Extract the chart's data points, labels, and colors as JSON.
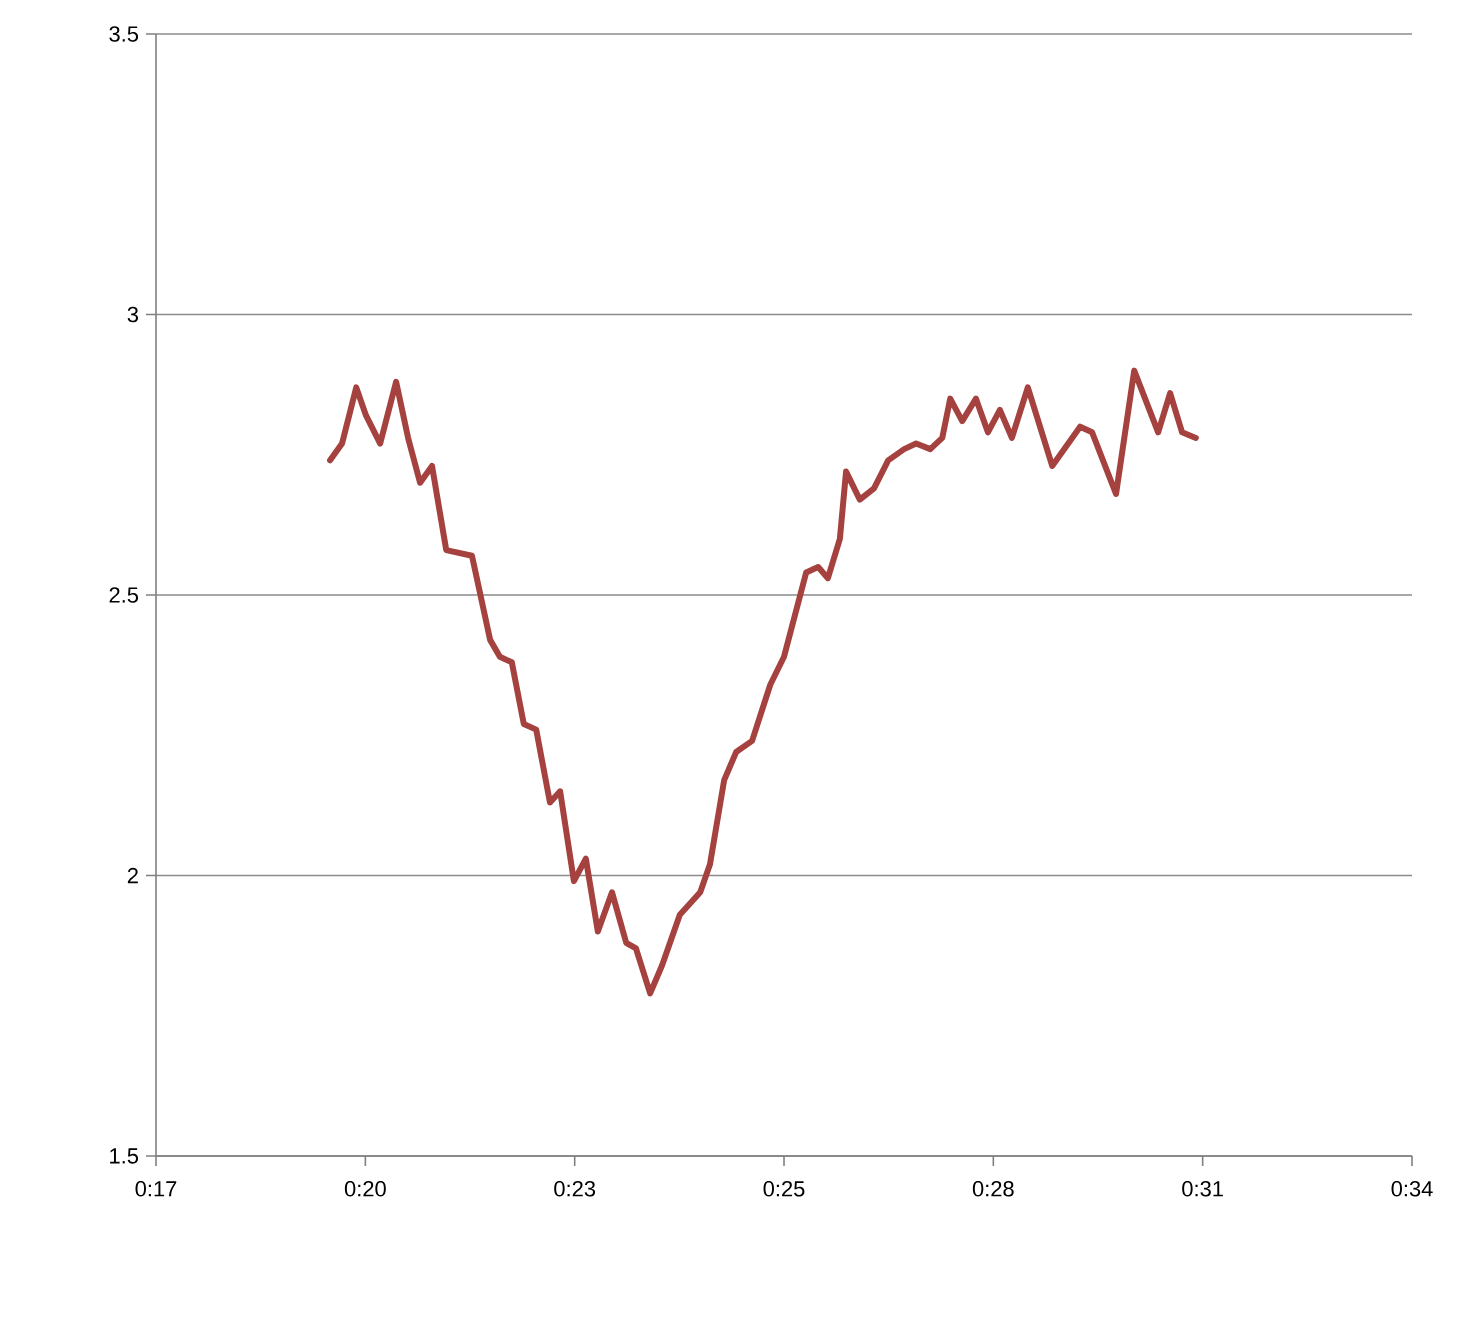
{
  "chart_data": {
    "type": "line",
    "x": [
      0.3226,
      0.3253,
      0.3285,
      0.3307,
      0.3339,
      0.3375,
      0.3402,
      0.3429,
      0.3456,
      0.3488,
      0.3546,
      0.3587,
      0.3609,
      0.3636,
      0.3663,
      0.3691,
      0.3722,
      0.3745,
      0.3776,
      0.3803,
      0.383,
      0.3862,
      0.3894,
      0.3916,
      0.3948,
      0.3975,
      0.4015,
      0.4061,
      0.4083,
      0.4115,
      0.4142,
      0.4178,
      0.4219,
      0.425,
      0.43,
      0.4327,
      0.4349,
      0.4376,
      0.439,
      0.4421,
      0.4453,
      0.4485,
      0.4521,
      0.4548,
      0.458,
      0.4607,
      0.4625,
      0.4652,
      0.4683,
      0.471,
      0.4737,
      0.4764,
      0.48,
      0.4855,
      0.4918,
      0.4945,
      0.4999,
      0.504,
      0.5094,
      0.5121,
      0.5148,
      0.5179
    ],
    "series": [
      {
        "color": "#a5423f",
        "values": [
          2.74,
          2.77,
          2.87,
          2.82,
          2.77,
          2.88,
          2.78,
          2.7,
          2.73,
          2.58,
          2.57,
          2.42,
          2.39,
          2.38,
          2.27,
          2.26,
          2.13,
          2.15,
          1.99,
          2.03,
          1.9,
          1.97,
          1.88,
          1.87,
          1.79,
          1.84,
          1.93,
          1.97,
          2.02,
          2.17,
          2.22,
          2.24,
          2.34,
          2.39,
          2.54,
          2.55,
          2.53,
          2.6,
          2.72,
          2.67,
          2.69,
          2.74,
          2.76,
          2.77,
          2.76,
          2.78,
          2.85,
          2.81,
          2.85,
          2.79,
          2.83,
          2.78,
          2.87,
          2.73,
          2.8,
          2.79,
          2.68,
          2.9,
          2.79,
          2.86,
          2.79,
          2.78
        ]
      }
    ],
    "xlim": [
      0.28333,
      0.56667
    ],
    "xticks": [
      {
        "value": 0.28333,
        "label": "0:17"
      },
      {
        "value": 0.33056,
        "label": "0:20"
      },
      {
        "value": 0.37778,
        "label": "0:23"
      },
      {
        "value": 0.425,
        "label": "0:25"
      },
      {
        "value": 0.47222,
        "label": "0:28"
      },
      {
        "value": 0.51944,
        "label": "0:31"
      },
      {
        "value": 0.56667,
        "label": "0:34"
      }
    ],
    "ylim": [
      1.5,
      3.5
    ],
    "yticks": [
      1.5,
      2,
      2.5,
      3,
      3.5
    ],
    "grid": "y",
    "marker": "none",
    "line_style": "solid"
  }
}
